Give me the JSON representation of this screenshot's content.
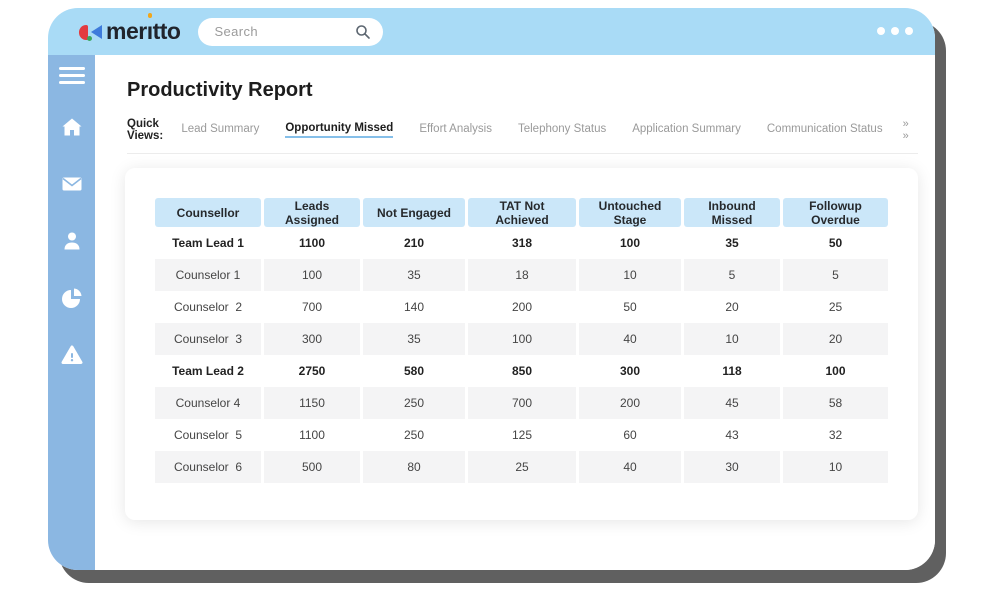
{
  "header": {
    "logo_pre": "mer",
    "logo_i": "ı",
    "logo_post": "tto",
    "search_placeholder": "Search"
  },
  "sidebar": {
    "items": [
      "menu",
      "home",
      "mail",
      "contacts",
      "reports",
      "alerts"
    ]
  },
  "main": {
    "title": "Productivity Report",
    "quick_views_label": "Quick Views:",
    "tabs": [
      {
        "label": "Lead Summary",
        "active": false
      },
      {
        "label": "Opportunity Missed",
        "active": true
      },
      {
        "label": "Effort Analysis",
        "active": false
      },
      {
        "label": "Telephony Status",
        "active": false
      },
      {
        "label": "Application Summary",
        "active": false
      },
      {
        "label": "Communication Status",
        "active": false
      }
    ],
    "tabs_overflow": "» »"
  },
  "table": {
    "columns": [
      "Counsellor",
      "Leads Assigned",
      "Not Engaged",
      "TAT Not Achieved",
      "Untouched Stage",
      "Inbound Missed",
      "Followup Overdue"
    ],
    "rows": [
      {
        "name": "Team Lead 1",
        "bold": true,
        "values": [
          1100,
          210,
          318,
          100,
          35,
          50
        ]
      },
      {
        "name": "Counselor 1",
        "bold": false,
        "values": [
          100,
          35,
          18,
          10,
          5,
          5
        ]
      },
      {
        "name": "Counselor  2",
        "bold": false,
        "values": [
          700,
          140,
          200,
          50,
          20,
          25
        ]
      },
      {
        "name": "Counselor  3",
        "bold": false,
        "values": [
          300,
          35,
          100,
          40,
          10,
          20
        ]
      },
      {
        "name": "Team Lead 2",
        "bold": true,
        "values": [
          2750,
          580,
          850,
          300,
          118,
          100
        ]
      },
      {
        "name": "Counselor 4",
        "bold": false,
        "values": [
          1150,
          250,
          700,
          200,
          45,
          58
        ]
      },
      {
        "name": "Counselor  5",
        "bold": false,
        "values": [
          1100,
          250,
          125,
          60,
          43,
          32
        ]
      },
      {
        "name": "Counselor  6",
        "bold": false,
        "values": [
          500,
          80,
          25,
          40,
          30,
          10
        ]
      }
    ]
  },
  "colors": {
    "header_band": "#A9DBF6",
    "sidebar": "#8BB7E2",
    "table_header": "#CBE7F9",
    "row_alt": "#F4F4F5",
    "active_tab_underline": "#85BFE9",
    "window_shadow": "#606060",
    "logo_red": "#E23B40",
    "logo_blue": "#3E7BDB",
    "logo_green": "#3BA55C",
    "logo_yellow": "#F2A71B"
  }
}
